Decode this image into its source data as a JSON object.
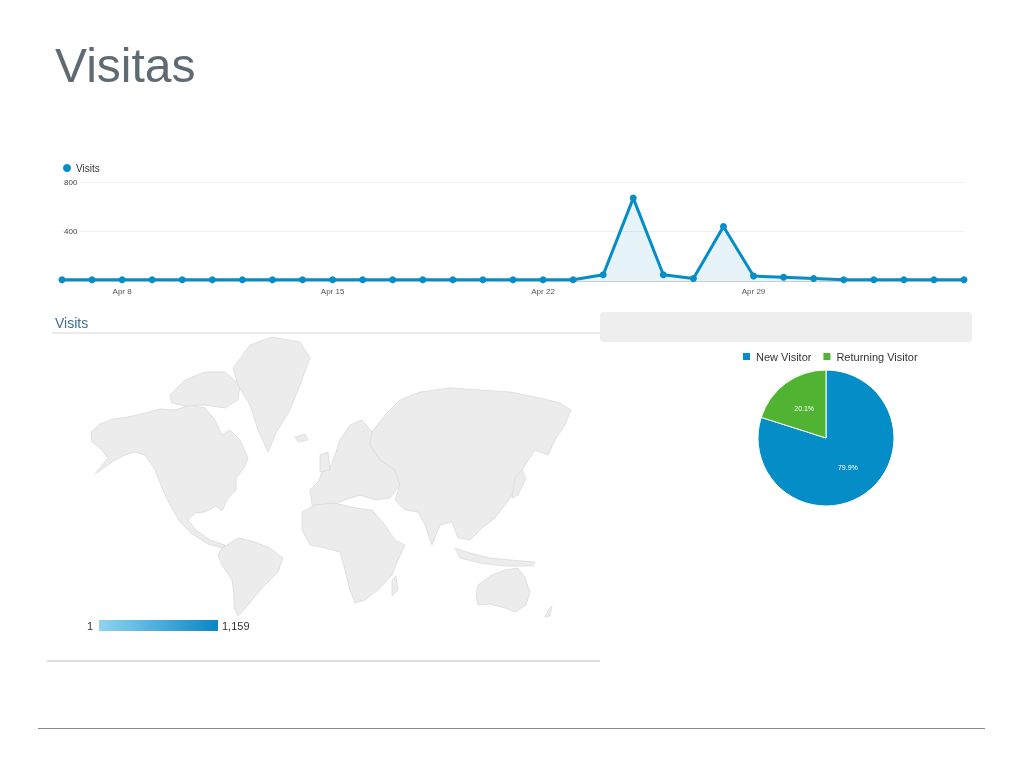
{
  "chart_data": [
    {
      "type": "area",
      "title": "Visitas",
      "x": [
        "--04-06",
        "--04-07",
        "--04-08",
        "--04-09",
        "--04-10",
        "--04-11",
        "--04-12",
        "--04-13",
        "--04-14",
        "--04-15",
        "--04-16",
        "--04-17",
        "--04-18",
        "--04-19",
        "--04-20",
        "--04-21",
        "--04-22",
        "--04-23",
        "--04-24",
        "--04-25",
        "--04-26",
        "--04-27",
        "--04-28",
        "--04-29",
        "--04-30",
        "--05-01",
        "--05-02",
        "--05-03",
        "--05-04",
        "--05-05",
        "--05-06"
      ],
      "series": [
        {
          "name": "Visits",
          "color": "#058dc7",
          "values": [
            10,
            10,
            10,
            10,
            10,
            10,
            10,
            10,
            10,
            10,
            10,
            10,
            10,
            10,
            10,
            10,
            10,
            10,
            50,
            670,
            50,
            20,
            440,
            40,
            30,
            20,
            10,
            10,
            10,
            10,
            10
          ]
        }
      ],
      "xlim": [
        "--04-06",
        "--05-06"
      ],
      "xticks": [
        {
          "value": "--04-08",
          "label": "Apr 8"
        },
        {
          "value": "--04-15",
          "label": "Apr 15"
        },
        {
          "value": "--04-22",
          "label": "Apr 22"
        },
        {
          "value": "--04-29",
          "label": "Apr 29"
        }
      ],
      "ylim": [
        0,
        800
      ],
      "yticks": [
        400,
        800
      ],
      "grid": "y",
      "legend": "top left",
      "marker": "circle"
    },
    {
      "type": "other",
      "title": "Visits",
      "annotations": [
        "1",
        "1,159"
      ]
    },
    {
      "type": "pie",
      "categories": [
        "New Visitor",
        "Returning Visitor"
      ],
      "values": [
        79.9,
        20.1
      ],
      "colors": [
        "#058dc7",
        "#50b432"
      ],
      "value_labels": [
        "79.9%",
        "20.1%"
      ],
      "legend": "top"
    }
  ]
}
